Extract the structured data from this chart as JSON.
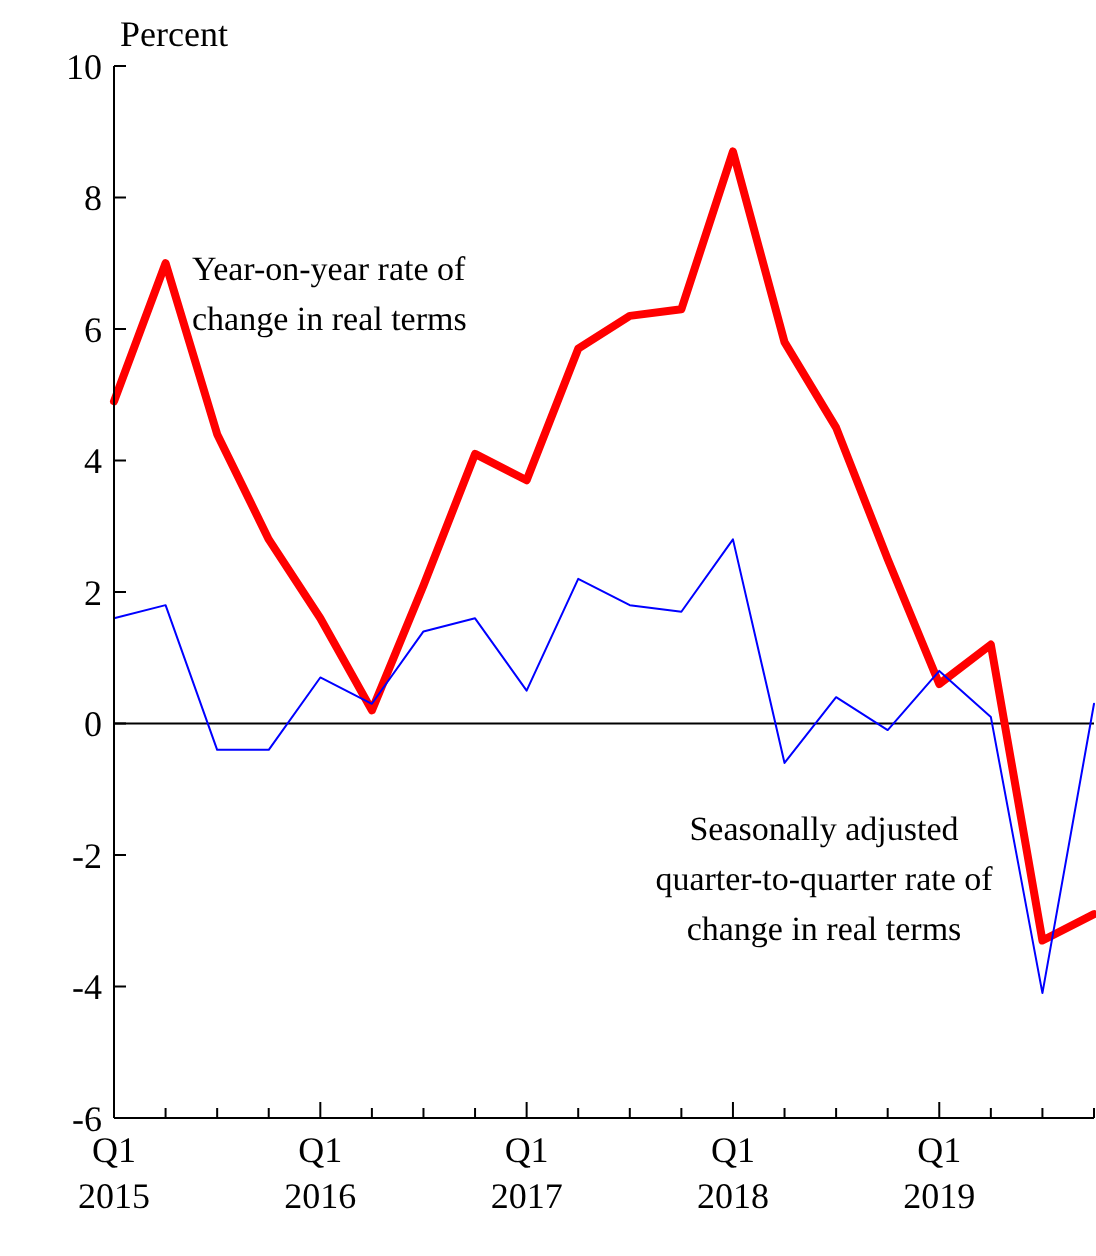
{
  "chart_data": {
    "type": "line",
    "ylabel": "Percent",
    "categories": [
      "Q1 2015",
      null,
      null,
      null,
      "Q1 2016",
      null,
      null,
      null,
      "Q1 2017",
      null,
      null,
      null,
      "Q1 2018",
      null,
      null,
      null,
      "Q1 2019",
      null,
      null,
      null
    ],
    "series": [
      {
        "name": "Year-on-year rate of change in real terms",
        "color": "#ff0000",
        "values": [
          4.9,
          7.0,
          4.4,
          2.8,
          1.6,
          0.2,
          2.1,
          4.1,
          3.7,
          5.7,
          6.2,
          6.3,
          8.7,
          5.8,
          4.5,
          2.5,
          0.6,
          1.2,
          -3.3,
          -2.9
        ]
      },
      {
        "name": "Seasonally adjusted quarter-to-quarter rate of change in real terms",
        "color": "#0000ff",
        "values": [
          1.6,
          1.8,
          -0.4,
          -0.4,
          0.7,
          0.3,
          1.4,
          1.6,
          0.5,
          2.2,
          1.8,
          1.7,
          2.8,
          -0.6,
          0.4,
          -0.1,
          0.8,
          0.1,
          -4.1,
          0.3
        ]
      }
    ],
    "ylim": [
      -6,
      10
    ],
    "yticks": [
      -6,
      -4,
      -2,
      0,
      2,
      4,
      6,
      8,
      10
    ],
    "ref_lines": [
      {
        "axis": "y",
        "value": 0,
        "color": "#000000"
      }
    ],
    "grid": false,
    "legend": false,
    "marker": "none",
    "line_style": "solid"
  }
}
